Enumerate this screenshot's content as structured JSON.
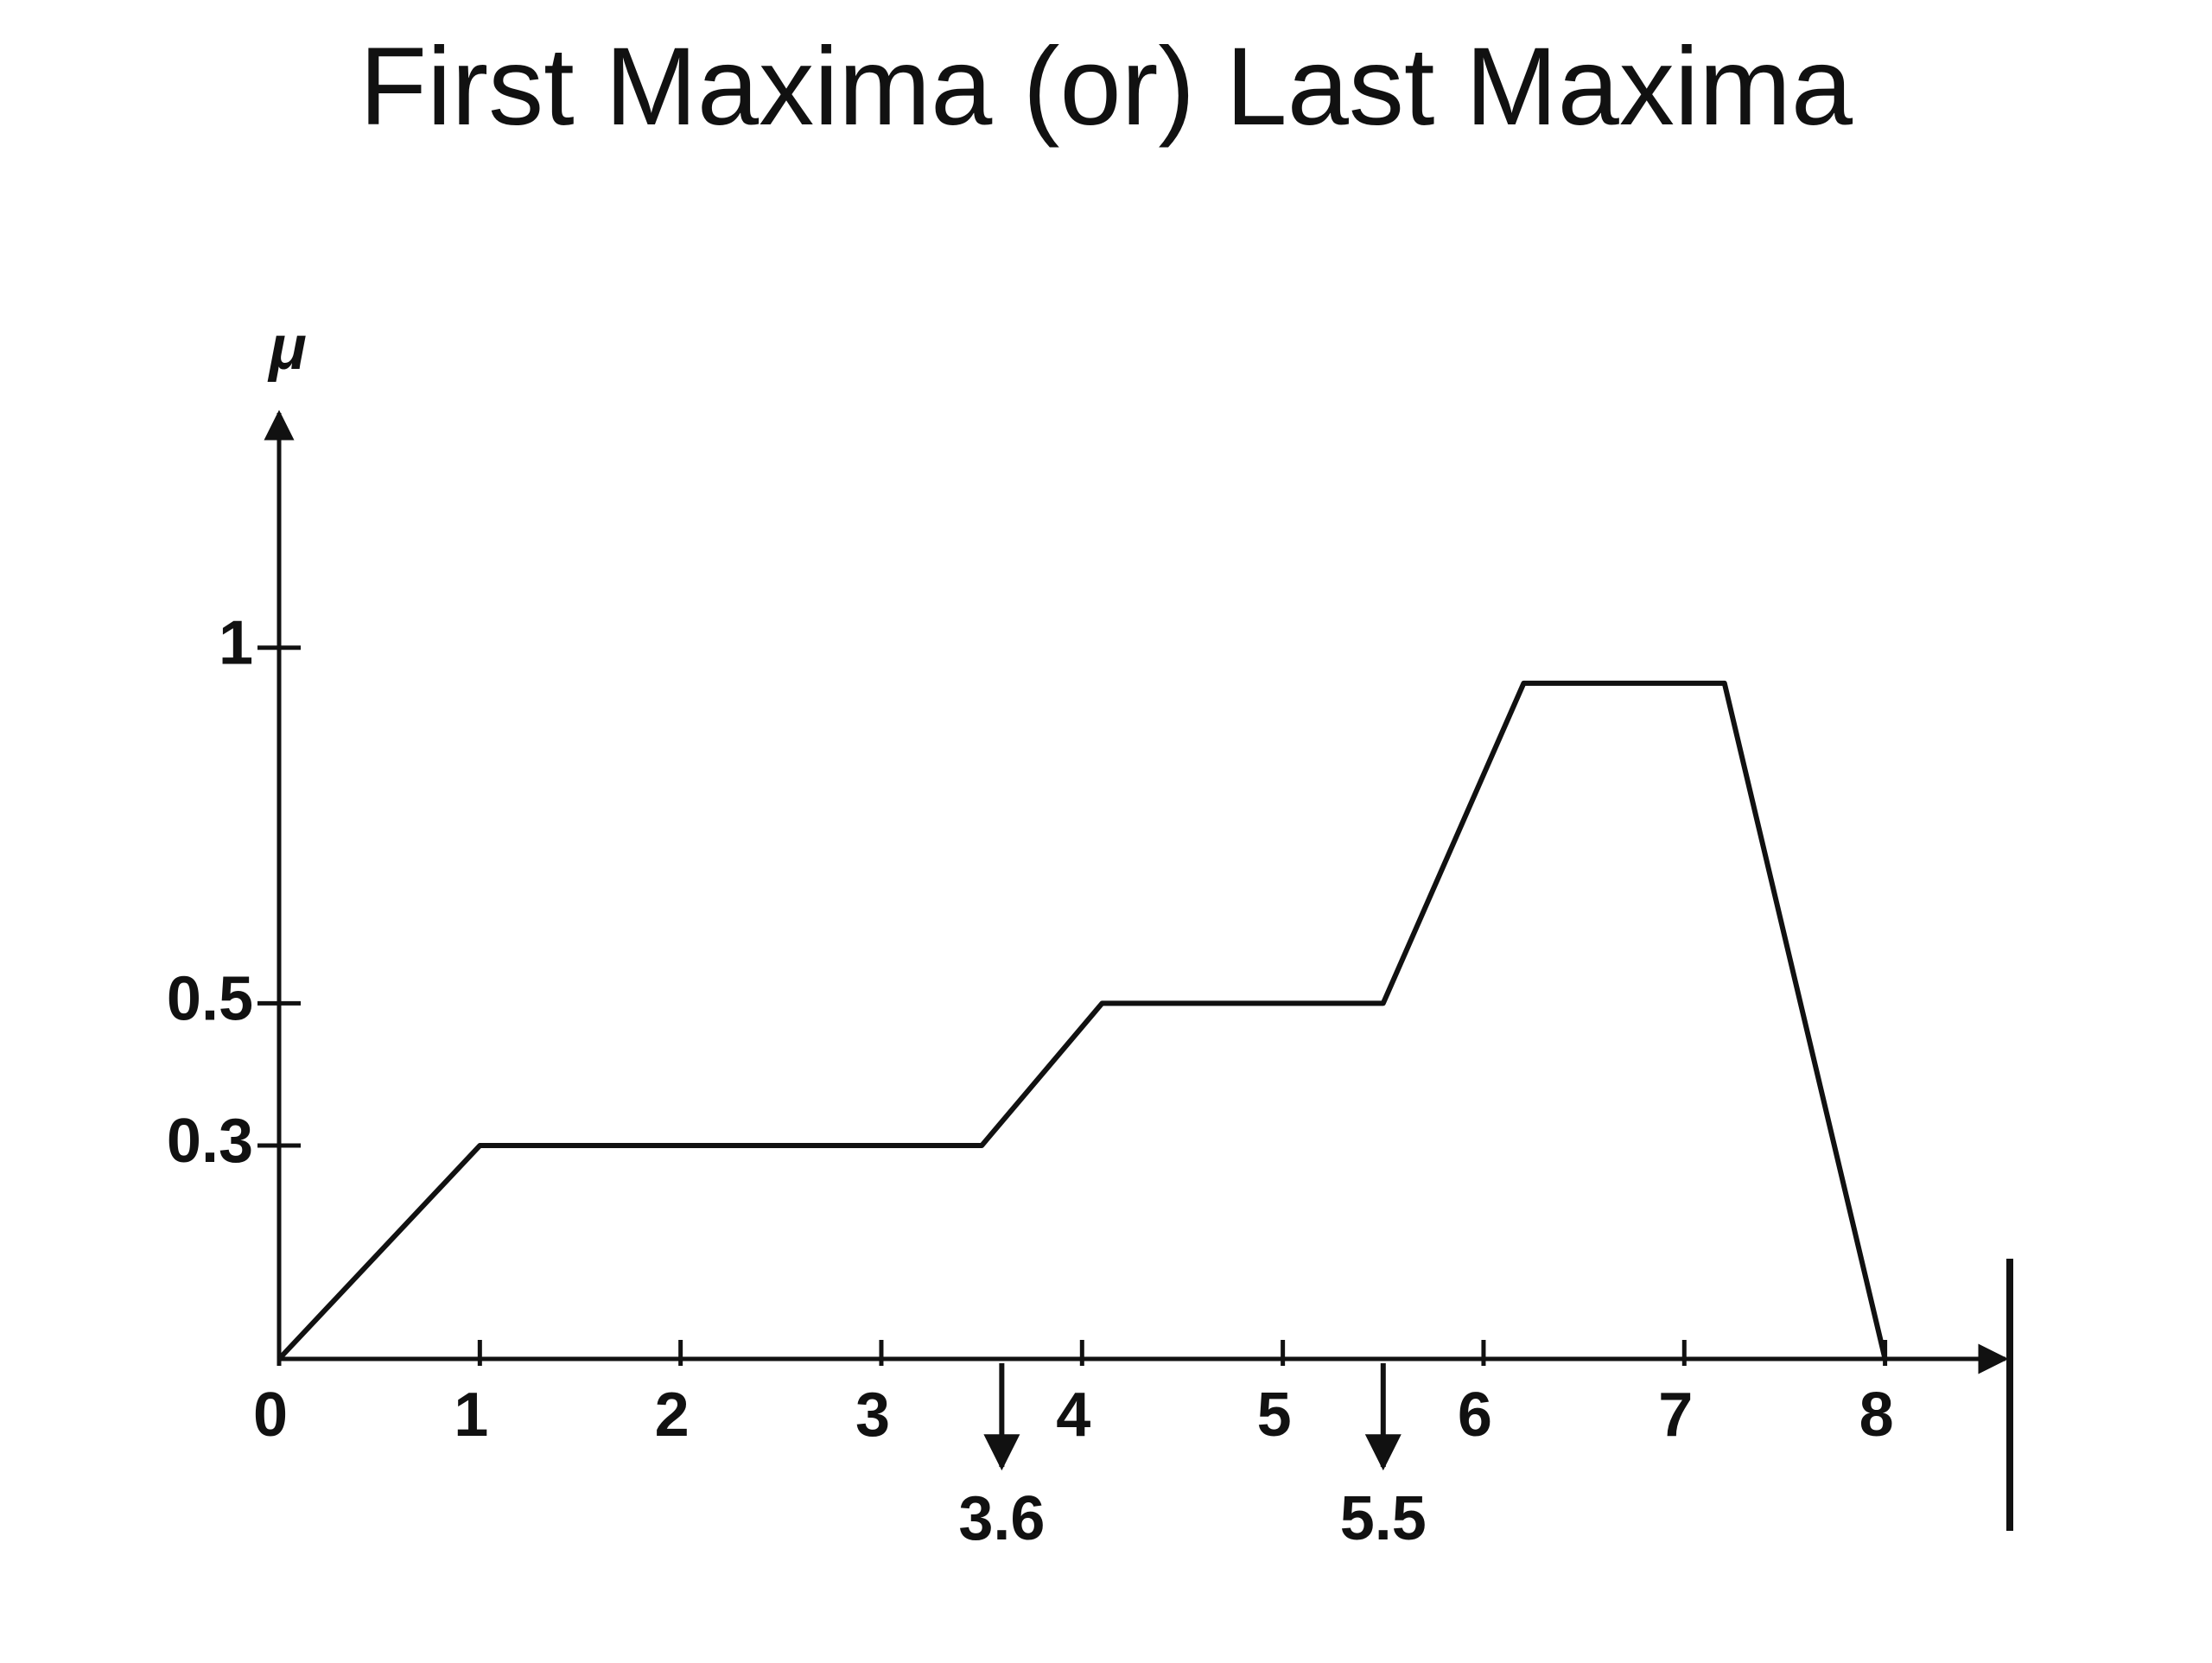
{
  "chart_data": {
    "type": "line",
    "title": "First Maxima (or) Last Maxima",
    "y_label": "μ",
    "x": [
      0,
      1,
      3.5,
      4.1,
      5.5,
      6.2,
      7.2,
      8
    ],
    "values": [
      0,
      0.3,
      0.3,
      0.5,
      0.5,
      0.95,
      0.95,
      0
    ],
    "color": "#111111",
    "xlim": [
      0,
      8.6
    ],
    "xticks": [
      0,
      1,
      2,
      3,
      4,
      5,
      6,
      7,
      8
    ],
    "ylim": [
      0,
      1.33
    ],
    "yticks": [
      0.3,
      0.5,
      1
    ],
    "annotations": [
      3.6,
      5.5
    ]
  }
}
